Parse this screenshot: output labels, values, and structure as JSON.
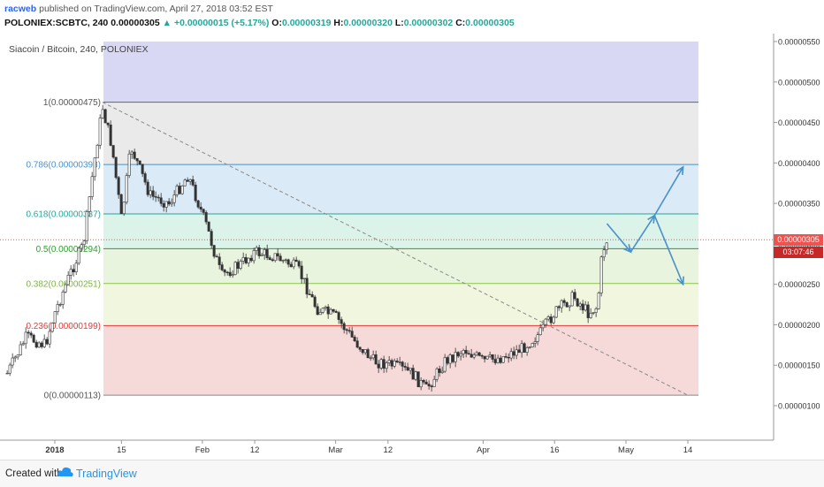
{
  "header": {
    "user": "racweb",
    "published": "published on TradingView.com, April 27, 2018 03:52 EST",
    "symbol_line": "POLONIEX:SCBTC, 240",
    "last": "0.00000305",
    "change": "+0.00000015 (+5.17%)",
    "o_label": "O:",
    "o": "0.00000319",
    "h_label": "H:",
    "h": "0.00000320",
    "l_label": "L:",
    "l": "0.00000302",
    "c_label": "C:",
    "c": "0.00000305"
  },
  "chart_title": "Siacoin / Bitcoin, 240, POLONIEX",
  "footer": {
    "created": "Created with",
    "brand": "TradingView"
  },
  "price_tag": {
    "value": "0.00000305",
    "countdown": "03:07:46"
  },
  "colors": {
    "up": "#26a69a",
    "down": "#ef5350",
    "candle": "#333333",
    "fib_purple": "#d1d1f3",
    "fib_gray": "#e6e6e6",
    "fib_blue": "#d4e6f5",
    "fib_teal": "#d6f1e6",
    "fib_green": "#e4f2d7",
    "fib_lime": "#eef5d9",
    "fib_red": "#f5d4d4",
    "arrow": "#4a90c9",
    "price_tag": "#ef5350",
    "countdown_tag": "#c62828"
  },
  "chart_data": {
    "type": "candlestick",
    "title": "Siacoin / Bitcoin, 240, POLONIEX",
    "y_axis": {
      "ticks": [
        "0.00000550",
        "0.00000500",
        "0.00000450",
        "0.00000400",
        "0.00000350",
        "0.00000300",
        "0.00000250",
        "0.00000200",
        "0.00000150",
        "0.00000100"
      ],
      "range": [
        6e-07,
        5.6e-06
      ]
    },
    "x_axis": {
      "ticks": [
        {
          "label": "2018",
          "bold": true,
          "date": "2018-01-01"
        },
        {
          "label": "15",
          "date": "2018-01-15"
        },
        {
          "label": "Feb",
          "date": "2018-02-01"
        },
        {
          "label": "12",
          "date": "2018-02-12"
        },
        {
          "label": "Mar",
          "date": "2018-03-01"
        },
        {
          "label": "12",
          "date": "2018-03-12"
        },
        {
          "label": "Apr",
          "date": "2018-04-01"
        },
        {
          "label": "16",
          "date": "2018-04-16"
        },
        {
          "label": "May",
          "date": "2018-05-01"
        },
        {
          "label": "14",
          "date": "2018-05-14"
        }
      ]
    },
    "fibonacci": [
      {
        "level": "1",
        "price": "0.00000475"
      },
      {
        "level": "0.786",
        "price": "0.00000398"
      },
      {
        "level": "0.618",
        "price": "0.00000337"
      },
      {
        "level": "0.5",
        "price": "0.00000294"
      },
      {
        "level": "0.382",
        "price": "0.00000251"
      },
      {
        "level": "0.236",
        "price": "0.00000199"
      },
      {
        "level": "0",
        "price": "0.00000113"
      }
    ],
    "price_path": [
      {
        "date": "2017-12-22",
        "price": 1.4e-06
      },
      {
        "date": "2017-12-26",
        "price": 1.85e-06
      },
      {
        "date": "2017-12-30",
        "price": 1.75e-06
      },
      {
        "date": "2018-01-01",
        "price": 2.15e-06
      },
      {
        "date": "2018-01-04",
        "price": 2.6e-06
      },
      {
        "date": "2018-01-07",
        "price": 3e-06
      },
      {
        "date": "2018-01-09",
        "price": 3.9e-06
      },
      {
        "date": "2018-01-11",
        "price": 4.7e-06
      },
      {
        "date": "2018-01-13",
        "price": 4.2e-06
      },
      {
        "date": "2018-01-15",
        "price": 3.3e-06
      },
      {
        "date": "2018-01-17",
        "price": 4.2e-06
      },
      {
        "date": "2018-01-21",
        "price": 3.6e-06
      },
      {
        "date": "2018-01-25",
        "price": 3.5e-06
      },
      {
        "date": "2018-01-29",
        "price": 3.85e-06
      },
      {
        "date": "2018-02-02",
        "price": 3.2e-06
      },
      {
        "date": "2018-02-05",
        "price": 2.6e-06
      },
      {
        "date": "2018-02-09",
        "price": 2.75e-06
      },
      {
        "date": "2018-02-12",
        "price": 2.9e-06
      },
      {
        "date": "2018-02-16",
        "price": 2.85e-06
      },
      {
        "date": "2018-02-21",
        "price": 2.7e-06
      },
      {
        "date": "2018-02-25",
        "price": 2.2e-06
      },
      {
        "date": "2018-03-01",
        "price": 2.1e-06
      },
      {
        "date": "2018-03-05",
        "price": 1.8e-06
      },
      {
        "date": "2018-03-09",
        "price": 1.55e-06
      },
      {
        "date": "2018-03-13",
        "price": 1.5e-06
      },
      {
        "date": "2018-03-17",
        "price": 1.4e-06
      },
      {
        "date": "2018-03-20",
        "price": 1.2e-06
      },
      {
        "date": "2018-03-24",
        "price": 1.55e-06
      },
      {
        "date": "2018-03-28",
        "price": 1.7e-06
      },
      {
        "date": "2018-04-01",
        "price": 1.55e-06
      },
      {
        "date": "2018-04-05",
        "price": 1.6e-06
      },
      {
        "date": "2018-04-09",
        "price": 1.7e-06
      },
      {
        "date": "2018-04-13",
        "price": 1.9e-06
      },
      {
        "date": "2018-04-16",
        "price": 2.15e-06
      },
      {
        "date": "2018-04-20",
        "price": 2.35e-06
      },
      {
        "date": "2018-04-23",
        "price": 2.15e-06
      },
      {
        "date": "2018-04-25",
        "price": 2.22e-06
      },
      {
        "date": "2018-04-26",
        "price": 2.9e-06
      },
      {
        "date": "2018-04-27",
        "price": 3.05e-06
      }
    ],
    "projection": [
      {
        "date": "2018-04-27",
        "price": 3.25e-06
      },
      {
        "date": "2018-05-02",
        "price": 2.9e-06
      },
      {
        "date": "2018-05-07",
        "price": 3.35e-06
      },
      {
        "date": "2018-05-13",
        "price": 2.5e-06
      }
    ],
    "projection_alt": [
      {
        "date": "2018-05-07",
        "price": 3.35e-06
      },
      {
        "date": "2018-05-13",
        "price": 3.95e-06
      }
    ],
    "trendline": [
      {
        "date": "2018-01-11",
        "price": 4.75e-06
      },
      {
        "date": "2018-05-14",
        "price": 1.13e-06
      }
    ],
    "current_price": 3.05e-06
  }
}
